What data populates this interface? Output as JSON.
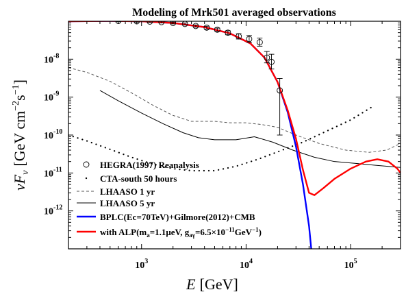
{
  "chart_data": {
    "type": "line",
    "title": "Modeling of Mrk501 averaged observations",
    "xlabel": {
      "var": "E",
      "unit": "[GeV]"
    },
    "ylabel": {
      "var": "νF",
      "sub": "ν",
      "unit_open": "[GeV cm",
      "unit_exp1": "−2",
      "unit_mid": "s",
      "unit_exp2": "−1",
      "unit_close": "]"
    },
    "xscale": "log",
    "yscale": "log",
    "xlim": [
      200,
      300000
    ],
    "ylim": [
      1e-13,
      1e-07
    ],
    "xticks": [
      {
        "value": 1000,
        "base": "10",
        "exp": "3"
      },
      {
        "value": 10000,
        "base": "10",
        "exp": "4"
      },
      {
        "value": 100000,
        "base": "10",
        "exp": "5"
      }
    ],
    "yticks": [
      {
        "value": 1e-08,
        "base": "10",
        "exp": "-8"
      },
      {
        "value": 1e-09,
        "base": "10",
        "exp": "-9"
      },
      {
        "value": 1e-10,
        "base": "10",
        "exp": "-10"
      },
      {
        "value": 1e-11,
        "base": "10",
        "exp": "-11"
      },
      {
        "value": 1e-12,
        "base": "10",
        "exp": "-12"
      }
    ],
    "legend_position": "bottom-left",
    "series": [
      {
        "name": "HEGRA(1997) Reanalysis",
        "style": "markers-open-circle-errorbars",
        "color": "#000000",
        "points": [
          {
            "x": 600,
            "y": 1.02e-07,
            "err_lo": 5e-09,
            "err_hi": 5e-09
          },
          {
            "x": 900,
            "y": 1e-07,
            "err_lo": 5e-09,
            "err_hi": 5e-09
          },
          {
            "x": 1200,
            "y": 9.8e-08,
            "err_lo": 5e-09,
            "err_hi": 5e-09
          },
          {
            "x": 1550,
            "y": 9.5e-08,
            "err_lo": 5e-09,
            "err_hi": 5e-09
          },
          {
            "x": 2000,
            "y": 9e-08,
            "err_lo": 5e-09,
            "err_hi": 5e-09
          },
          {
            "x": 2600,
            "y": 8.5e-08,
            "err_lo": 5e-09,
            "err_hi": 5e-09
          },
          {
            "x": 3300,
            "y": 7.5e-08,
            "err_lo": 5e-09,
            "err_hi": 5e-09
          },
          {
            "x": 4200,
            "y": 6.8e-08,
            "err_lo": 6e-09,
            "err_hi": 6e-09
          },
          {
            "x": 5300,
            "y": 6e-08,
            "err_lo": 6e-09,
            "err_hi": 6e-09
          },
          {
            "x": 6700,
            "y": 5e-08,
            "err_lo": 6e-09,
            "err_hi": 6e-09
          },
          {
            "x": 8500,
            "y": 4e-08,
            "err_lo": 6e-09,
            "err_hi": 7e-09
          },
          {
            "x": 10700,
            "y": 3.4e-08,
            "err_lo": 6e-09,
            "err_hi": 8e-09
          },
          {
            "x": 13500,
            "y": 2.8e-08,
            "err_lo": 6e-09,
            "err_hi": 8e-09
          },
          {
            "x": 15800,
            "y": 1.1e-08,
            "err_lo": 3e-09,
            "err_hi": 5e-09
          },
          {
            "x": 17500,
            "y": 8.5e-09,
            "err_lo": 3e-09,
            "err_hi": 5e-09
          },
          {
            "x": 21000,
            "y": 1.5e-09,
            "err_lo": 1.4e-09,
            "err_hi": 1.6e-09
          }
        ]
      },
      {
        "name": "CTA-south 50 hours",
        "style": "dotted",
        "color": "#000000",
        "points": [
          {
            "x": 200,
            "y": 1e-10
          },
          {
            "x": 300,
            "y": 7e-11
          },
          {
            "x": 500,
            "y": 4.2e-11
          },
          {
            "x": 800,
            "y": 2.6e-11
          },
          {
            "x": 1300,
            "y": 1.7e-11
          },
          {
            "x": 2000,
            "y": 1.3e-11
          },
          {
            "x": 3000,
            "y": 1.15e-11
          },
          {
            "x": 5000,
            "y": 1.15e-11
          },
          {
            "x": 8000,
            "y": 1.5e-11
          },
          {
            "x": 13000,
            "y": 2.3e-11
          },
          {
            "x": 20000,
            "y": 3.6e-11
          },
          {
            "x": 35000,
            "y": 6.5e-11
          },
          {
            "x": 60000,
            "y": 1.3e-10
          },
          {
            "x": 100000,
            "y": 2.5e-10
          },
          {
            "x": 160000,
            "y": 5.5e-10
          }
        ]
      },
      {
        "name": "LHAASO 1 yr",
        "style": "dashed",
        "color": "#555555",
        "points": [
          {
            "x": 200,
            "y": 6e-09
          },
          {
            "x": 300,
            "y": 4.5e-09
          },
          {
            "x": 500,
            "y": 2.6e-09
          },
          {
            "x": 800,
            "y": 1.3e-09
          },
          {
            "x": 1300,
            "y": 6e-10
          },
          {
            "x": 2000,
            "y": 3.3e-10
          },
          {
            "x": 3000,
            "y": 2.3e-10
          },
          {
            "x": 5000,
            "y": 2.3e-10
          },
          {
            "x": 7000,
            "y": 2.1e-10
          },
          {
            "x": 10000,
            "y": 2.1e-10
          },
          {
            "x": 14000,
            "y": 1.9e-10
          },
          {
            "x": 20000,
            "y": 1.6e-10
          },
          {
            "x": 30000,
            "y": 1e-10
          },
          {
            "x": 50000,
            "y": 6e-11
          },
          {
            "x": 90000,
            "y": 4e-11
          },
          {
            "x": 150000,
            "y": 3.5e-11
          },
          {
            "x": 220000,
            "y": 4e-11
          },
          {
            "x": 300000,
            "y": 6e-11
          }
        ]
      },
      {
        "name": "LHAASO 5 yr",
        "style": "solid",
        "color": "#000000",
        "points": [
          {
            "x": 400,
            "y": 1.5e-09
          },
          {
            "x": 600,
            "y": 8e-10
          },
          {
            "x": 1000,
            "y": 3.8e-10
          },
          {
            "x": 1600,
            "y": 2e-10
          },
          {
            "x": 2500,
            "y": 1.15e-10
          },
          {
            "x": 3500,
            "y": 8.5e-11
          },
          {
            "x": 5000,
            "y": 7.5e-11
          },
          {
            "x": 8000,
            "y": 7.5e-11
          },
          {
            "x": 12000,
            "y": 9e-11
          },
          {
            "x": 18000,
            "y": 6.5e-11
          },
          {
            "x": 28000,
            "y": 4e-11
          },
          {
            "x": 45000,
            "y": 2.6e-11
          },
          {
            "x": 70000,
            "y": 2e-11
          },
          {
            "x": 110000,
            "y": 1.8e-11
          },
          {
            "x": 170000,
            "y": 1.6e-11
          },
          {
            "x": 300000,
            "y": 1.4e-11
          }
        ]
      },
      {
        "name": "BPLC(Ec=70TeV)+Gilmore(2012)+CMB",
        "style": "solid-thick",
        "color": "#0000ff",
        "points": [
          {
            "x": 200,
            "y": 1e-07
          },
          {
            "x": 500,
            "y": 1.02e-07
          },
          {
            "x": 1000,
            "y": 1e-07
          },
          {
            "x": 2000,
            "y": 9e-08
          },
          {
            "x": 4000,
            "y": 7e-08
          },
          {
            "x": 7000,
            "y": 4.8e-08
          },
          {
            "x": 11000,
            "y": 2.6e-08
          },
          {
            "x": 15000,
            "y": 1.1e-08
          },
          {
            "x": 20000,
            "y": 2.5e-09
          },
          {
            "x": 25000,
            "y": 4e-10
          },
          {
            "x": 30000,
            "y": 5e-11
          },
          {
            "x": 35000,
            "y": 5e-12
          },
          {
            "x": 40000,
            "y": 4e-13
          },
          {
            "x": 42000,
            "y": 1e-13
          }
        ]
      },
      {
        "name": "with ALP",
        "label_text": {
          "prefix": "with ALP(m",
          "sub_a": "a",
          "mid1": "=1.1μeV, g",
          "sub_ag": "aγ",
          "mid2": "=6.5×10",
          "exp1": "−11",
          "mid3": "GeV",
          "exp2": "−1",
          "suffix": ")"
        },
        "style": "solid-thick",
        "color": "#ff0000",
        "points": [
          {
            "x": 200,
            "y": 1e-07
          },
          {
            "x": 500,
            "y": 1.02e-07
          },
          {
            "x": 1000,
            "y": 1e-07
          },
          {
            "x": 2000,
            "y": 9e-08
          },
          {
            "x": 4000,
            "y": 7e-08
          },
          {
            "x": 7000,
            "y": 4.8e-08
          },
          {
            "x": 11000,
            "y": 2.6e-08
          },
          {
            "x": 15000,
            "y": 1.1e-08
          },
          {
            "x": 20000,
            "y": 2.5e-09
          },
          {
            "x": 25000,
            "y": 4.5e-10
          },
          {
            "x": 30000,
            "y": 8e-11
          },
          {
            "x": 35000,
            "y": 1.2e-11
          },
          {
            "x": 40000,
            "y": 3e-12
          },
          {
            "x": 45000,
            "y": 2.6e-12
          },
          {
            "x": 55000,
            "y": 4e-12
          },
          {
            "x": 70000,
            "y": 7e-12
          },
          {
            "x": 100000,
            "y": 1.3e-11
          },
          {
            "x": 140000,
            "y": 2e-11
          },
          {
            "x": 180000,
            "y": 2.3e-11
          },
          {
            "x": 230000,
            "y": 2e-11
          },
          {
            "x": 280000,
            "y": 1.3e-11
          },
          {
            "x": 300000,
            "y": 1e-11
          }
        ]
      }
    ]
  }
}
